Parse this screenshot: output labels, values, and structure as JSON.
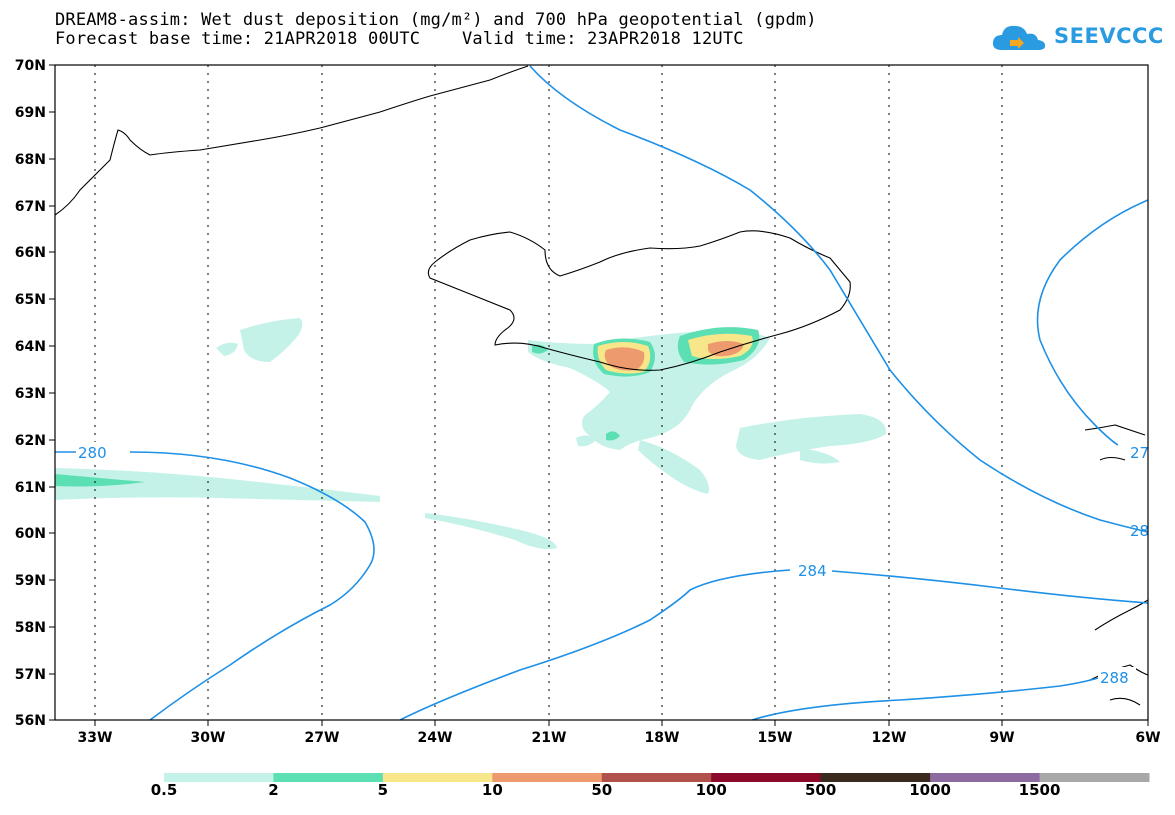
{
  "header": {
    "title_line1": "DREAM8-assim: Wet dust deposition (mg/m²) and 700 hPa geopotential (gpdm)",
    "title_line2": "Forecast base time: 21APR2018 00UTC    Valid time: 23APR2018 12UTC"
  },
  "logo": {
    "text": "SEEVCCC",
    "color": "#2a9be0"
  },
  "map": {
    "lat_labels": [
      "70N",
      "69N",
      "68N",
      "67N",
      "66N",
      "65N",
      "64N",
      "63N",
      "62N",
      "61N",
      "60N",
      "59N",
      "58N",
      "57N",
      "56N"
    ],
    "lon_labels": [
      "33W",
      "30W",
      "27W",
      "24W",
      "21W",
      "18W",
      "15W",
      "12W",
      "9W",
      "6W"
    ],
    "contour_labels": [
      "280",
      "284",
      "288",
      "27",
      "28"
    ],
    "contour_color": "#1e90e6"
  },
  "legend": {
    "labels": [
      "0.5",
      "2",
      "5",
      "10",
      "50",
      "100",
      "500",
      "1000",
      "1500"
    ],
    "colors": [
      "#c4f2e8",
      "#5ddfb4",
      "#f7e68a",
      "#ee9a6f",
      "#b0524b",
      "#8b0a2a",
      "#3b2a1e",
      "#8d6aa0",
      "#a8a8a8"
    ]
  }
}
